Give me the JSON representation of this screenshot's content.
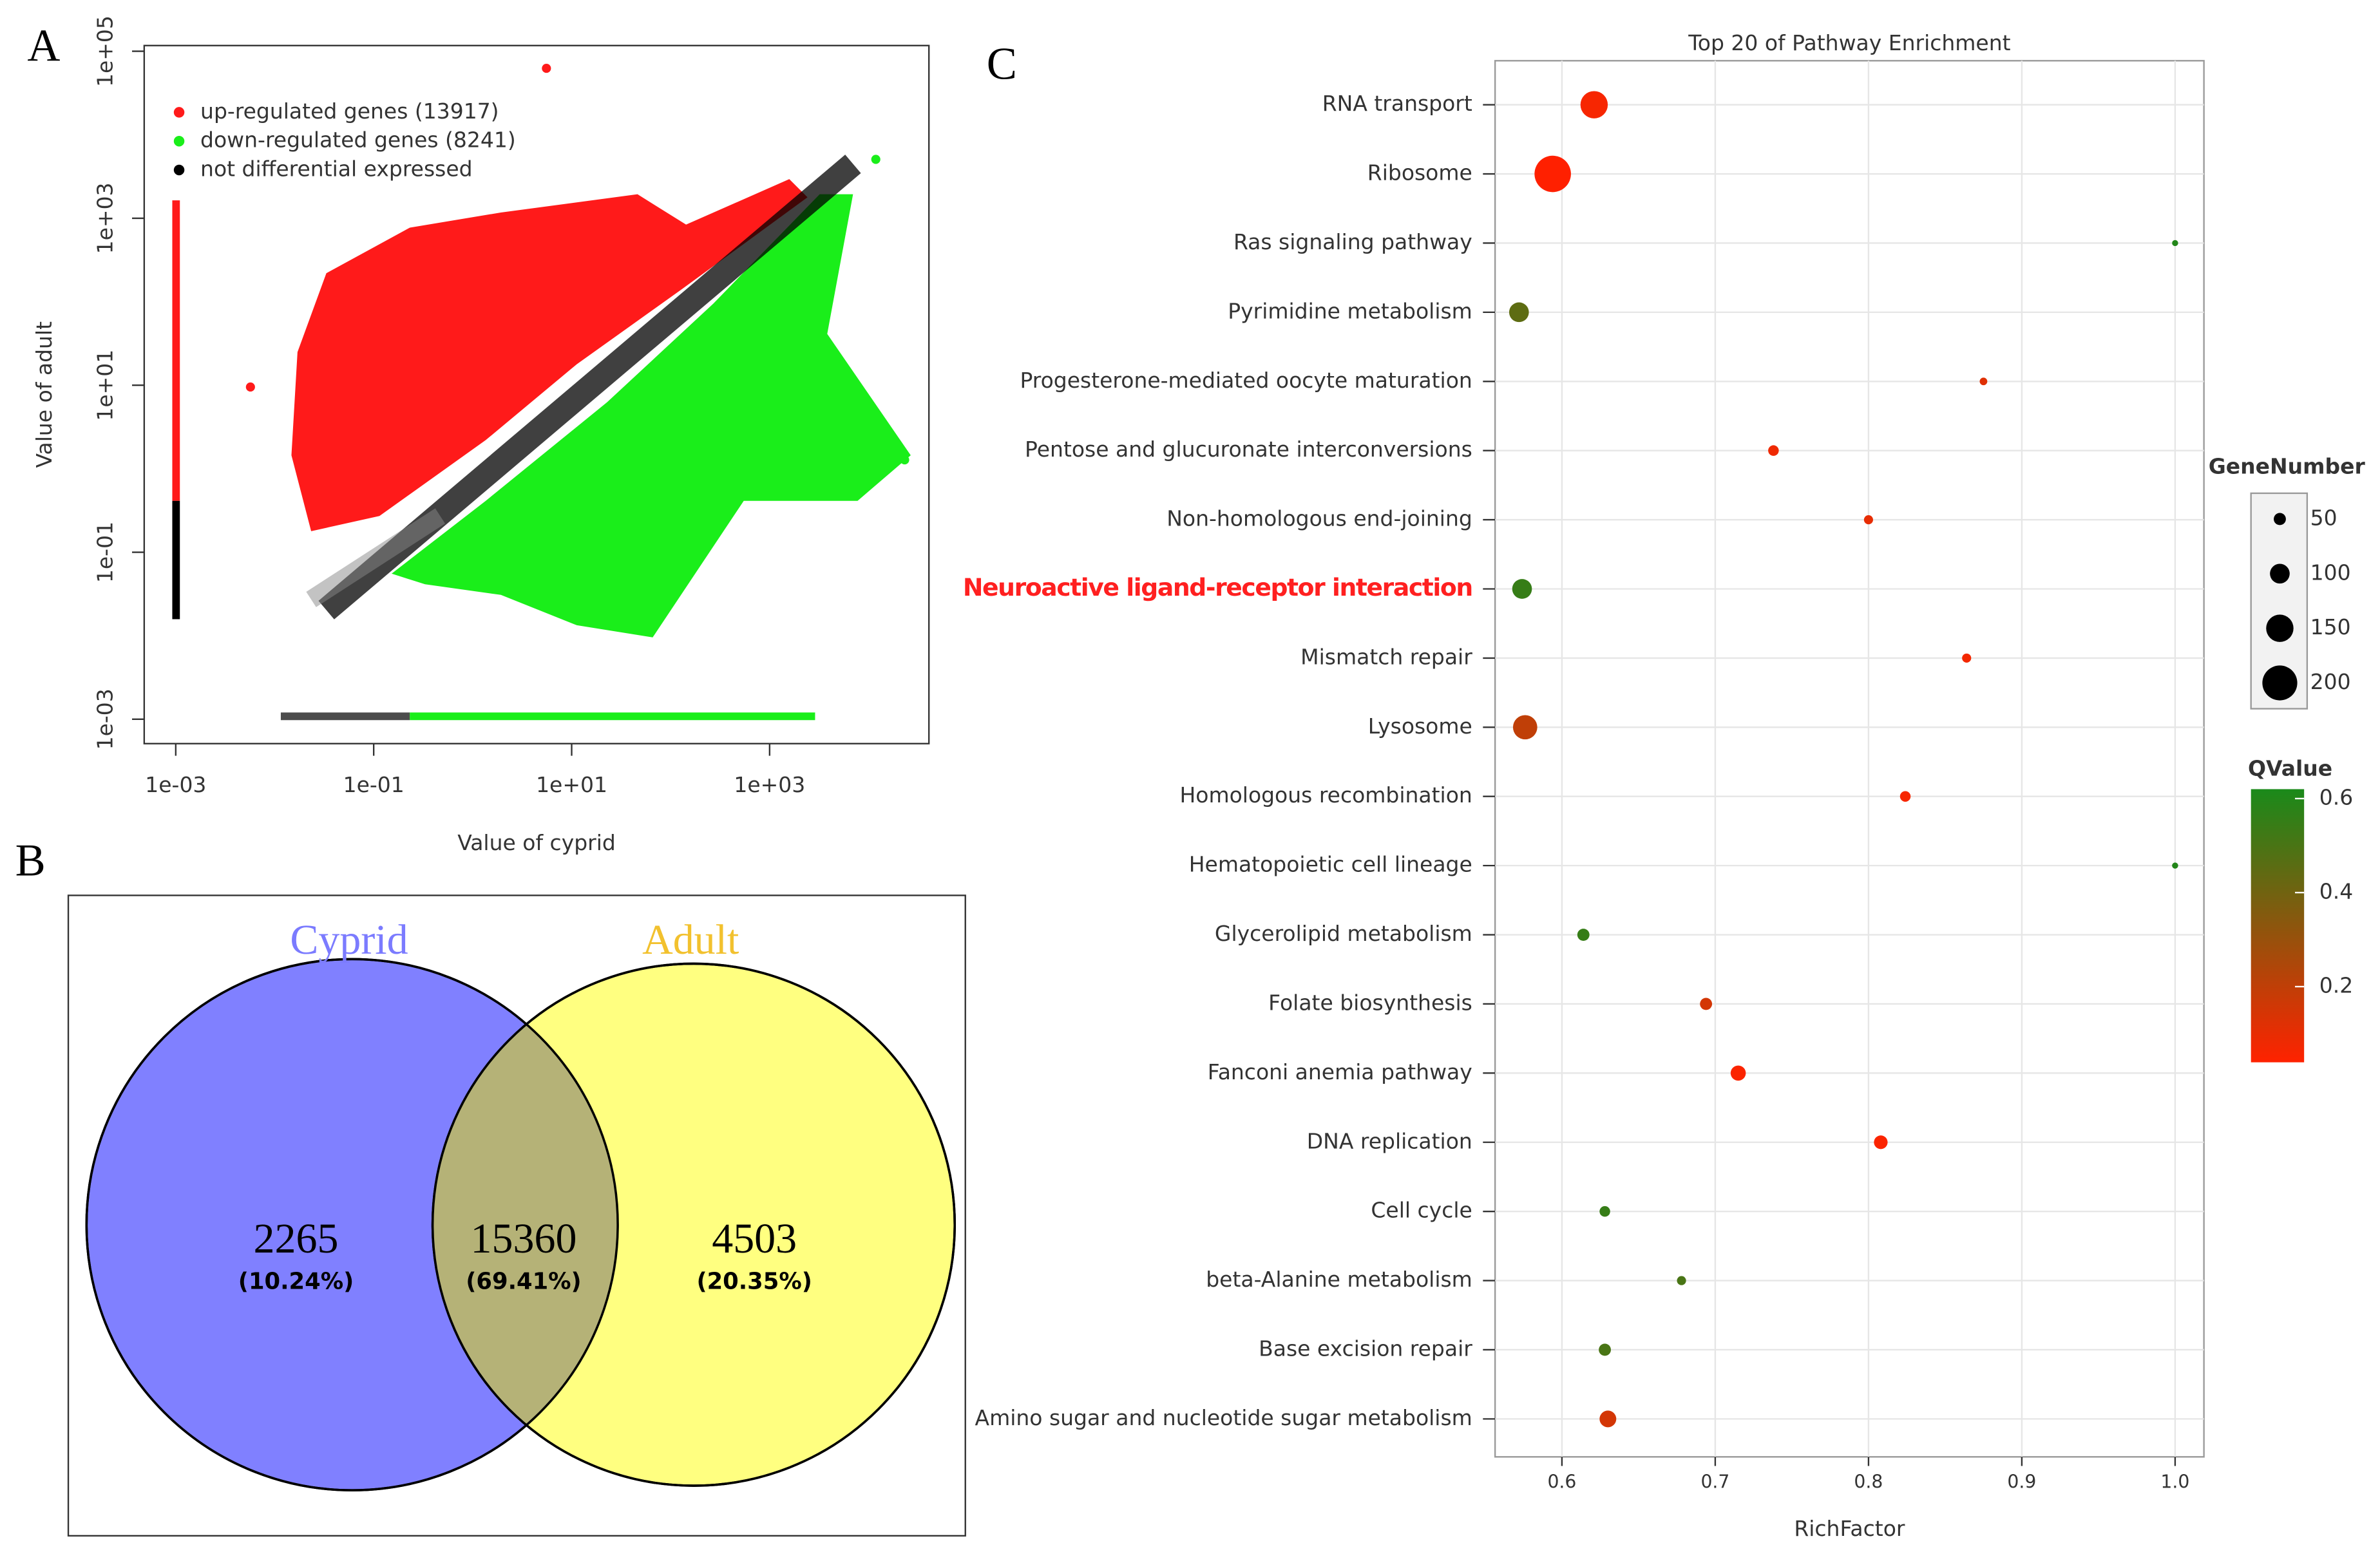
{
  "chart_data": [
    {
      "type": "scatter",
      "panel_label": "A",
      "xlabel": "Value of cyprid",
      "ylabel": "Value of adult",
      "log_x": true,
      "log_y": true,
      "xlim": [
        0.00048,
        40700
      ],
      "ylim": [
        0.00051,
        117000
      ],
      "xticks": [
        {
          "value": 0.001,
          "label": "1e-03"
        },
        {
          "value": 0.1,
          "label": "1e-01"
        },
        {
          "value": 10,
          "label": "1e+01"
        },
        {
          "value": 1000,
          "label": "1e+03"
        }
      ],
      "yticks": [
        {
          "value": 0.001,
          "label": "1e-03"
        },
        {
          "value": 0.1,
          "label": "1e-01"
        },
        {
          "value": 10,
          "label": "1e+01"
        },
        {
          "value": 1000,
          "label": "1e+03"
        },
        {
          "value": 100000,
          "label": "1e+05"
        }
      ],
      "series": [
        {
          "name": "up-regulated genes (13917)",
          "color": "#ff1a1a"
        },
        {
          "name": "down-regulated genes (8241)",
          "color": "#1aee1a"
        },
        {
          "name": "not differential expressed",
          "color": "#000000"
        }
      ]
    },
    {
      "type": "venn",
      "panel_label": "B",
      "sets": [
        {
          "name": "Cyprid",
          "color": "#8080ff",
          "label_color": "#7b7bff"
        },
        {
          "name": "Adult",
          "color": "#ffff80",
          "label_color": "#f2c12e"
        }
      ],
      "overlap_color": "#b5b277",
      "values": [
        2265,
        15360,
        4503
      ],
      "percent_labels": [
        "(10.24%)",
        "(69.41%)",
        "(20.35%)"
      ]
    },
    {
      "type": "bubble",
      "panel_label": "C",
      "title": "Top 20 of Pathway Enrichment",
      "xlabel": "RichFactor",
      "categories": [
        "RNA transport",
        "Ribosome",
        "Ras signaling pathway",
        "Pyrimidine metabolism",
        "Progesterone-mediated oocyte maturation",
        "Pentose and glucuronate interconversions",
        "Non-homologous end-joining",
        "Neuroactive ligand-receptor interaction",
        "Mismatch repair",
        "Lysosome",
        "Homologous recombination",
        "Hematopoietic cell lineage",
        "Glycerolipid metabolism",
        "Folate biosynthesis",
        "Fanconi anemia pathway",
        "DNA replication",
        "Cell cycle",
        "beta-Alanine metabolism",
        "Base excision repair",
        "Amino sugar and nucleotide sugar metabolism"
      ],
      "x": [
        0.621,
        0.594,
        1.0,
        0.572,
        0.875,
        0.738,
        0.8,
        0.574,
        0.864,
        0.576,
        0.824,
        1.0,
        0.614,
        0.694,
        0.715,
        0.808,
        0.628,
        0.678,
        0.628,
        0.63
      ],
      "sizes": [
        150,
        210,
        10,
        100,
        20,
        40,
        30,
        100,
        30,
        130,
        40,
        10,
        50,
        50,
        70,
        60,
        40,
        30,
        50,
        80
      ],
      "qvalues": [
        0.06,
        0.03,
        0.6,
        0.45,
        0.12,
        0.08,
        0.1,
        0.55,
        0.07,
        0.2,
        0.06,
        0.6,
        0.55,
        0.15,
        0.05,
        0.05,
        0.55,
        0.5,
        0.5,
        0.15
      ],
      "xlim": [
        0.5564,
        1.0188
      ],
      "xticks": [
        0.6,
        0.7,
        0.8,
        0.9,
        {
          "value": 1.0,
          "label": "1.0"
        }
      ],
      "grid": true,
      "highlight": 7,
      "highlight_color": "#ff2020",
      "size_legend_title": "GeneNumber",
      "size_ticks": [
        50,
        100,
        150,
        200
      ],
      "color_legend_title": "QValue",
      "qlim": [
        0.039,
        0.62
      ],
      "qticks": [
        0.2,
        0.4,
        0.6
      ],
      "color_low": "#ff2200",
      "color_high": "#1a8a1a"
    }
  ]
}
